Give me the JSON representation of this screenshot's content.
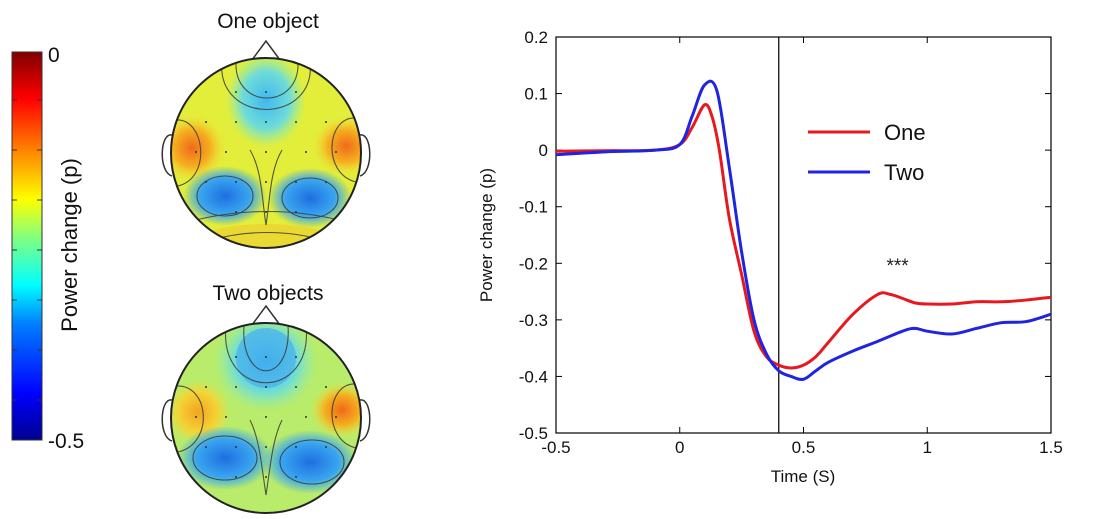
{
  "colorbar": {
    "label": "Power change (p)",
    "max_label": "0",
    "min_label": "-0.5",
    "range": [
      -0.5,
      0
    ],
    "colormap": [
      "#00008f",
      "#0000ff",
      "#0080ff",
      "#00ffff",
      "#80ff80",
      "#ffff00",
      "#ff8000",
      "#ff0000",
      "#800000"
    ]
  },
  "topomaps": [
    {
      "title": "One object"
    },
    {
      "title": "Two objects"
    }
  ],
  "chart_data": {
    "type": "line",
    "xlabel": "Time (S)",
    "ylabel": "Power change (p)",
    "xlim": [
      -0.5,
      1.5
    ],
    "ylim": [
      -0.5,
      0.2
    ],
    "xticks": [
      -0.5,
      0,
      0.5,
      1,
      1.5
    ],
    "xtick_labels": [
      "-0.5",
      "0",
      "0.5",
      "1",
      "1.5"
    ],
    "yticks": [
      0.2,
      0.1,
      0,
      -0.1,
      -0.2,
      -0.3,
      -0.4,
      -0.5
    ],
    "ytick_labels": [
      "0.2",
      "0.1",
      "0",
      "-0.1",
      "-0.2",
      "-0.3",
      "-0.4",
      "-0.5"
    ],
    "vline_x": 0.4,
    "annotation": {
      "text": "***",
      "x": 0.88,
      "y": -0.215
    },
    "legend_position": "top-right",
    "grid": false,
    "series": [
      {
        "name": "One",
        "color": "#e8191e",
        "x": [
          -0.5,
          -0.3,
          -0.1,
          0.0,
          0.05,
          0.1,
          0.13,
          0.16,
          0.2,
          0.25,
          0.3,
          0.35,
          0.4,
          0.45,
          0.5,
          0.55,
          0.6,
          0.7,
          0.8,
          0.85,
          0.9,
          0.95,
          1.0,
          1.1,
          1.2,
          1.3,
          1.4,
          1.5
        ],
        "y": [
          -0.002,
          -0.001,
          0.0,
          0.01,
          0.04,
          0.08,
          0.06,
          0.0,
          -0.12,
          -0.22,
          -0.32,
          -0.365,
          -0.38,
          -0.385,
          -0.38,
          -0.365,
          -0.34,
          -0.29,
          -0.255,
          -0.255,
          -0.262,
          -0.27,
          -0.272,
          -0.272,
          -0.268,
          -0.268,
          -0.265,
          -0.26
        ]
      },
      {
        "name": "Two",
        "color": "#1f24e0",
        "x": [
          -0.5,
          -0.3,
          -0.1,
          0.0,
          0.05,
          0.1,
          0.15,
          0.2,
          0.25,
          0.3,
          0.35,
          0.4,
          0.45,
          0.5,
          0.55,
          0.6,
          0.7,
          0.8,
          0.9,
          0.95,
          1.0,
          1.1,
          1.2,
          1.3,
          1.4,
          1.5
        ],
        "y": [
          -0.008,
          -0.003,
          0.0,
          0.01,
          0.06,
          0.115,
          0.105,
          -0.03,
          -0.18,
          -0.3,
          -0.36,
          -0.39,
          -0.4,
          -0.405,
          -0.39,
          -0.375,
          -0.355,
          -0.338,
          -0.32,
          -0.315,
          -0.32,
          -0.325,
          -0.315,
          -0.305,
          -0.303,
          -0.29
        ]
      }
    ]
  }
}
